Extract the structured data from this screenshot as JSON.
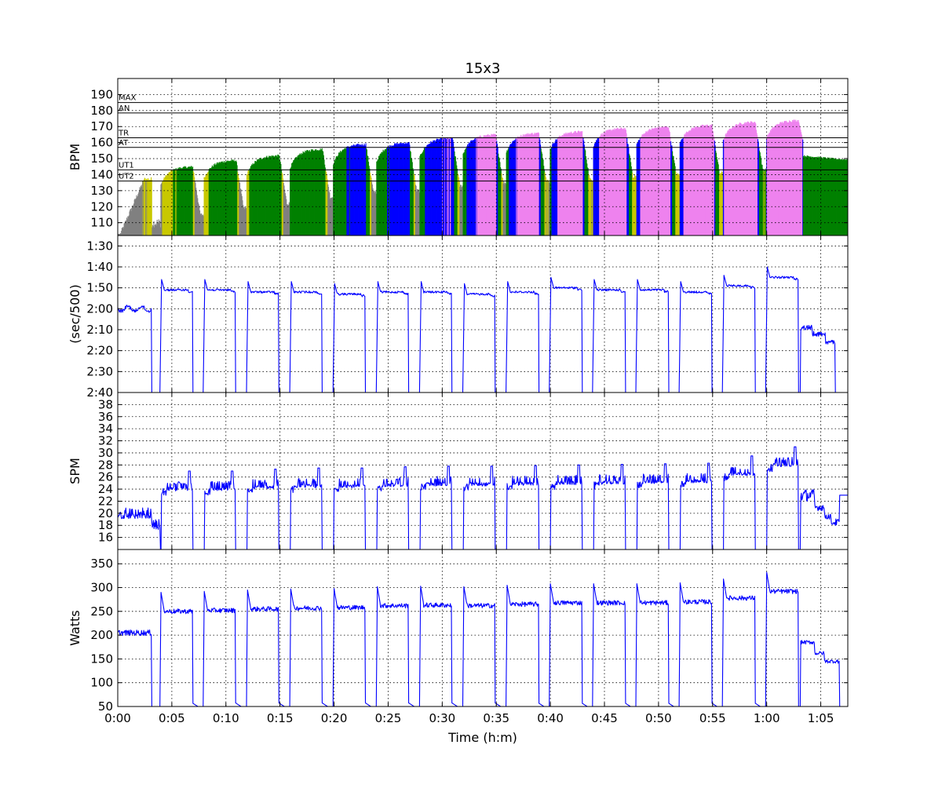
{
  "chart_data": {
    "type": "line",
    "title": "15x3",
    "xlabel": "Time (h:m)",
    "x_unit": "minutes",
    "xlim": [
      0,
      67.5
    ],
    "x_ticks": [
      0,
      5,
      10,
      15,
      20,
      25,
      30,
      35,
      40,
      45,
      50,
      55,
      60,
      65
    ],
    "x_tick_labels": [
      "0:00",
      "0:05",
      "0:10",
      "0:15",
      "0:20",
      "0:25",
      "0:30",
      "0:35",
      "0:40",
      "0:45",
      "0:50",
      "0:55",
      "1:00",
      "1:05"
    ],
    "grid": true,
    "series_color": "#0000ff",
    "intervals": {
      "work_start": [
        3.9,
        7.9,
        11.9,
        15.9,
        19.9,
        23.9,
        27.9,
        31.9,
        35.9,
        39.9,
        43.9,
        47.9,
        51.9,
        55.9,
        59.9
      ],
      "work_end": [
        6.9,
        10.9,
        14.9,
        18.9,
        22.9,
        26.9,
        30.9,
        34.9,
        38.9,
        42.9,
        46.9,
        50.9,
        54.9,
        58.9,
        62.9
      ],
      "pace_sec": [
        111,
        111,
        112,
        112,
        113,
        112,
        112,
        113,
        112,
        110,
        111,
        111,
        112,
        109,
        105
      ],
      "spm": [
        24.5,
        24.5,
        24.8,
        25,
        25,
        25.2,
        25.3,
        25.3,
        25.4,
        25.5,
        25.6,
        25.7,
        25.8,
        27,
        28.5
      ],
      "watts": [
        250,
        252,
        255,
        257,
        258,
        262,
        263,
        262,
        265,
        268,
        268,
        268,
        270,
        278,
        292
      ],
      "hr_peak": [
        145,
        149,
        152,
        156,
        159,
        160,
        163,
        165,
        166,
        167,
        169,
        170,
        171,
        173,
        174
      ]
    },
    "panels": [
      {
        "id": "hr",
        "ylabel": "BPM",
        "ylim": [
          102,
          200
        ],
        "yticks": [
          110,
          120,
          130,
          140,
          150,
          160,
          170,
          180,
          190
        ],
        "ytick_labels": [
          "110",
          "120",
          "130",
          "140",
          "150",
          "160",
          "170",
          "180",
          "190"
        ],
        "zones": [
          {
            "label": "MAX",
            "value": 185
          },
          {
            "label": "AN",
            "value": 178.5
          },
          {
            "label": "TR",
            "value": 163
          },
          {
            "label": "AT",
            "value": 157
          },
          {
            "label": "UT1",
            "value": 143
          },
          {
            "label": "UT2",
            "value": 136
          }
        ],
        "zone_colors": {
          "rest": "#808080",
          "ut2": "#c8c800",
          "ut1": "#008000",
          "at": "#0000ff",
          "tr": "#ee82ee"
        }
      },
      {
        "id": "pace",
        "ylabel": "(sec/500)",
        "ylim": [
          160,
          85
        ],
        "yticks": [
          90,
          100,
          110,
          120,
          130,
          140,
          150,
          160
        ],
        "ytick_labels": [
          "1:30",
          "1:40",
          "1:50",
          "2:00",
          "2:10",
          "2:20",
          "2:30",
          "2:40"
        ]
      },
      {
        "id": "spm",
        "ylabel": "SPM",
        "ylim": [
          14,
          40
        ],
        "yticks": [
          16,
          18,
          20,
          22,
          24,
          26,
          28,
          30,
          32,
          34,
          36,
          38
        ],
        "ytick_labels": [
          "16",
          "18",
          "20",
          "22",
          "24",
          "26",
          "28",
          "30",
          "32",
          "34",
          "36",
          "38"
        ]
      },
      {
        "id": "watts",
        "ylabel": "Watts",
        "ylim": [
          50,
          380
        ],
        "yticks": [
          50,
          100,
          150,
          200,
          250,
          300,
          350
        ],
        "ytick_labels": [
          "50",
          "100",
          "150",
          "200",
          "250",
          "300",
          "350"
        ]
      }
    ]
  }
}
